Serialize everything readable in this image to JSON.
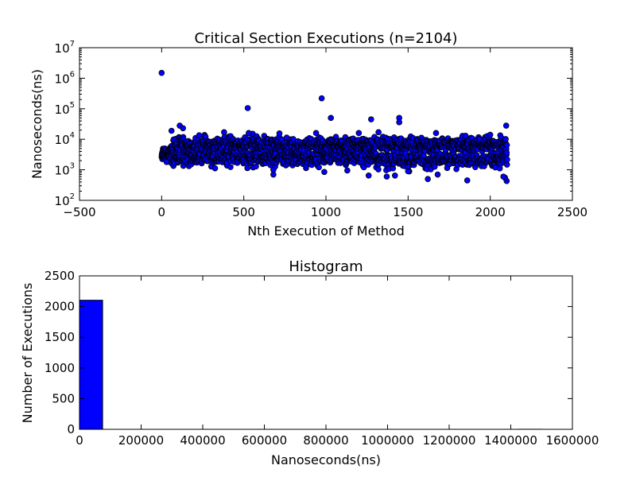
{
  "chart_data": [
    {
      "type": "scatter",
      "title": "Critical Section Executions (n=2104)",
      "xlabel": "Nth Execution of Method",
      "ylabel": "Nanoseconds(ns)",
      "xlim": [
        -500,
        2500
      ],
      "ylim": [
        100,
        10000000
      ],
      "yscale": "log",
      "x_ticks": [
        "−500",
        "0",
        "500",
        "1000",
        "1500",
        "2000",
        "2500"
      ],
      "y_ticks": [
        {
          "base": "10",
          "exp": "2"
        },
        {
          "base": "10",
          "exp": "3"
        },
        {
          "base": "10",
          "exp": "4"
        },
        {
          "base": "10",
          "exp": "5"
        },
        {
          "base": "10",
          "exp": "6"
        },
        {
          "base": "10",
          "exp": "7"
        }
      ],
      "grid": false,
      "marker_color": "#0000ff",
      "n": 2104,
      "outliers": [
        {
          "x": 0,
          "y": 1500000
        },
        {
          "x": 524,
          "y": 105000
        },
        {
          "x": 974,
          "y": 220000
        },
        {
          "x": 1030,
          "y": 50000
        },
        {
          "x": 1275,
          "y": 45000
        },
        {
          "x": 1446,
          "y": 50000
        },
        {
          "x": 1446,
          "y": 36000
        },
        {
          "x": 2097,
          "y": 28000
        },
        {
          "x": 110,
          "y": 28000
        },
        {
          "x": 130,
          "y": 23000
        },
        {
          "x": 60,
          "y": 19000
        },
        {
          "x": 380,
          "y": 17000
        },
        {
          "x": 530,
          "y": 16000
        },
        {
          "x": 940,
          "y": 16000
        },
        {
          "x": 1200,
          "y": 16000
        },
        {
          "x": 1320,
          "y": 17000
        },
        {
          "x": 1670,
          "y": 16000
        },
        {
          "x": 1850,
          "y": 13000
        },
        {
          "x": 2000,
          "y": 14000
        },
        {
          "x": 680,
          "y": 700
        },
        {
          "x": 680,
          "y": 1000
        },
        {
          "x": 1260,
          "y": 650
        },
        {
          "x": 1370,
          "y": 600
        },
        {
          "x": 1420,
          "y": 650
        },
        {
          "x": 1620,
          "y": 500
        },
        {
          "x": 1680,
          "y": 700
        },
        {
          "x": 1860,
          "y": 450
        },
        {
          "x": 2100,
          "y": 430
        },
        {
          "x": 2090,
          "y": 550
        },
        {
          "x": 2080,
          "y": 600
        },
        {
          "x": 990,
          "y": 850
        },
        {
          "x": 1130,
          "y": 950
        },
        {
          "x": 1500,
          "y": 900
        },
        {
          "x": 30,
          "y": 1800
        }
      ]
    },
    {
      "type": "bar",
      "title": "Histogram",
      "xlabel": "Nanoseconds(ns)",
      "ylabel": "Number of Executions",
      "xlim": [
        0,
        1600000
      ],
      "ylim": [
        0,
        2500
      ],
      "x_ticks": [
        "0",
        "200000",
        "400000",
        "600000",
        "800000",
        "1000000",
        "1200000",
        "1400000",
        "1600000"
      ],
      "y_ticks": [
        "0",
        "500",
        "1000",
        "1500",
        "2000",
        "2500"
      ],
      "grid": false,
      "bar_color": "#0000ff",
      "bins": [
        {
          "x0": 0,
          "x1": 75000,
          "count": 2103
        },
        {
          "x0": 1425000,
          "x1": 1500000,
          "count": 1
        }
      ]
    }
  ]
}
